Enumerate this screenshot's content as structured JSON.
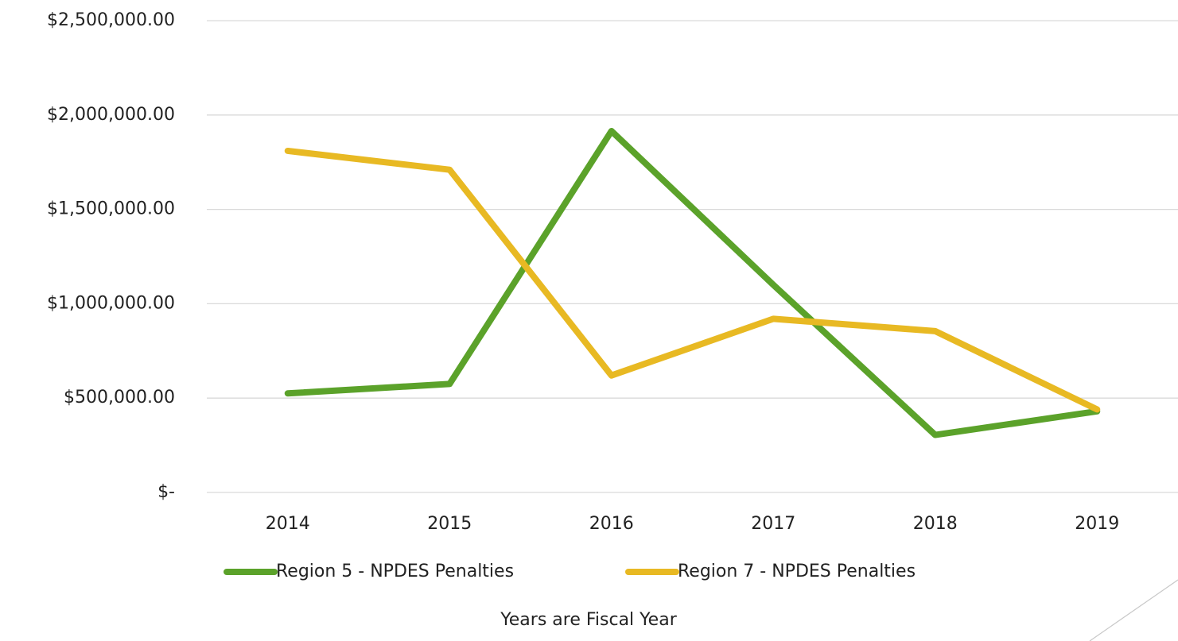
{
  "chart_data": {
    "type": "line",
    "categories": [
      "2014",
      "2015",
      "2016",
      "2017",
      "2018",
      "2019"
    ],
    "series": [
      {
        "name": "Region 5 - NPDES Penalties",
        "color": "#5ba22a",
        "values": [
          525000,
          575000,
          1915000,
          1100000,
          305000,
          430000
        ]
      },
      {
        "name": "Region 7 - NPDES Penalties",
        "color": "#e8b923",
        "values": [
          1810000,
          1710000,
          620000,
          920000,
          855000,
          440000
        ]
      }
    ],
    "ylim": [
      0,
      2500000
    ],
    "yticks": [
      {
        "value": 0,
        "label": "$-"
      },
      {
        "value": 500000,
        "label": "$500,000.00"
      },
      {
        "value": 1000000,
        "label": "$1,000,000.00"
      },
      {
        "value": 1500000,
        "label": "$1,500,000.00"
      },
      {
        "value": 2000000,
        "label": "$2,000,000.00"
      },
      {
        "value": 2500000,
        "label": "$2,500,000.00"
      }
    ],
    "grid": true,
    "legend": "bottom",
    "xlabel": "Years are Fiscal Year"
  }
}
